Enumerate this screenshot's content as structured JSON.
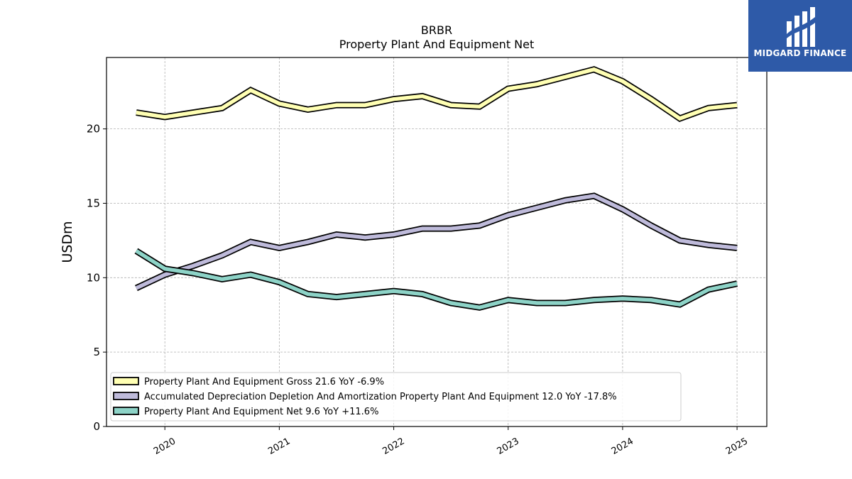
{
  "chart_data": {
    "type": "line",
    "title": "BRBR",
    "subtitle": "Property Plant And Equipment Net",
    "ylabel": "USDm",
    "xlabel": "",
    "ylim": [
      0,
      24.8
    ],
    "xlim": [
      2019.49,
      2025.26
    ],
    "yticks": [
      0,
      5,
      10,
      15,
      20
    ],
    "xticks": [
      {
        "value": 2020,
        "label": "2020"
      },
      {
        "value": 2021,
        "label": "2021"
      },
      {
        "value": 2022,
        "label": "2022"
      },
      {
        "value": 2023,
        "label": "2023"
      },
      {
        "value": 2024,
        "label": "2024"
      },
      {
        "value": 2025,
        "label": "2025"
      }
    ],
    "grid": true,
    "legend_position": "lower-left",
    "x": [
      2019.75,
      2020.0,
      2020.25,
      2020.5,
      2020.75,
      2021.0,
      2021.25,
      2021.5,
      2021.75,
      2022.0,
      2022.25,
      2022.5,
      2022.75,
      2023.0,
      2023.25,
      2023.5,
      2023.75,
      2024.0,
      2024.25,
      2024.5,
      2024.75,
      2025.0
    ],
    "series": [
      {
        "name": "Property Plant And Equipment Gross",
        "legend_label": "Property Plant And Equipment Gross  21.6 YoY -6.9%",
        "color": "#ffffb3",
        "values": [
          21.1,
          20.8,
          21.1,
          21.4,
          22.6,
          21.7,
          21.3,
          21.6,
          21.6,
          22.0,
          22.2,
          21.6,
          21.5,
          22.7,
          23.0,
          23.5,
          24.0,
          23.2,
          22.0,
          20.7,
          21.4,
          21.6
        ]
      },
      {
        "name": "Accumulated Depreciation Depletion And Amortization Property Plant And Equipment",
        "legend_label": "Accumulated Depreciation Depletion And Amortization Property Plant And Equipment  12.0 YoY -17.8%",
        "color": "#bebada",
        "values": [
          9.3,
          10.2,
          10.8,
          11.5,
          12.4,
          12.0,
          12.4,
          12.9,
          12.7,
          12.9,
          13.3,
          13.3,
          13.5,
          14.2,
          14.7,
          15.2,
          15.5,
          14.6,
          13.5,
          12.5,
          12.2,
          12.0
        ]
      },
      {
        "name": "Property Plant And Equipment Net",
        "legend_label": "Property Plant And Equipment Net  9.6 YoY +11.6%",
        "color": "#8dd3c7",
        "values": [
          11.8,
          10.6,
          10.3,
          9.9,
          10.2,
          9.7,
          8.9,
          8.7,
          8.9,
          9.1,
          8.9,
          8.3,
          8.0,
          8.5,
          8.3,
          8.3,
          8.5,
          8.6,
          8.5,
          8.2,
          9.2,
          9.6
        ]
      }
    ]
  },
  "logo": {
    "text": "MIDGARD FINANCE",
    "background": "#2e5aa8"
  }
}
